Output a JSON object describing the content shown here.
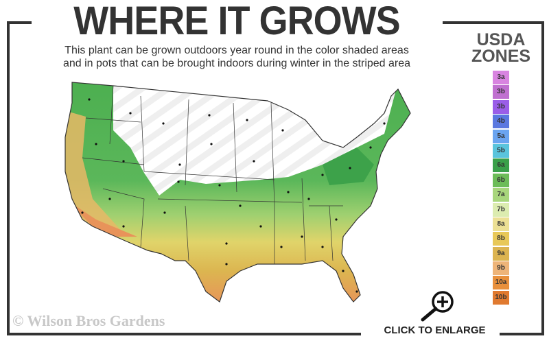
{
  "header": {
    "title": "WHERE IT GROWS",
    "subtitle_line1": "This plant can be grown outdoors year round in the color shaded areas",
    "subtitle_line2": "and in pots that can be brought indoors during winter in the striped area"
  },
  "legend": {
    "title_line1": "USDA",
    "title_line2": "ZONES",
    "zones": [
      {
        "label": "3a",
        "color": "#d884e0"
      },
      {
        "label": "3b",
        "color": "#c070d0"
      },
      {
        "label": "3b",
        "color": "#9a5ee8"
      },
      {
        "label": "4b",
        "color": "#5a78e0"
      },
      {
        "label": "5a",
        "color": "#6aa4f0"
      },
      {
        "label": "5b",
        "color": "#5ac4dc"
      },
      {
        "label": "6a",
        "color": "#3aa04a"
      },
      {
        "label": "6b",
        "color": "#6cbc58"
      },
      {
        "label": "7a",
        "color": "#a8d67c"
      },
      {
        "label": "7b",
        "color": "#dcecb0"
      },
      {
        "label": "8a",
        "color": "#ece094"
      },
      {
        "label": "8b",
        "color": "#e8c858"
      },
      {
        "label": "9a",
        "color": "#dcb450"
      },
      {
        "label": "9b",
        "color": "#eeb478"
      },
      {
        "label": "10a",
        "color": "#e8903c"
      },
      {
        "label": "10b",
        "color": "#e07a30"
      }
    ]
  },
  "footer": {
    "copyright": "© Wilson Bros Gardens",
    "enlarge_label": "CLICK TO ENLARGE",
    "enlarge_icon": "zoom-in-magnifier-icon"
  }
}
